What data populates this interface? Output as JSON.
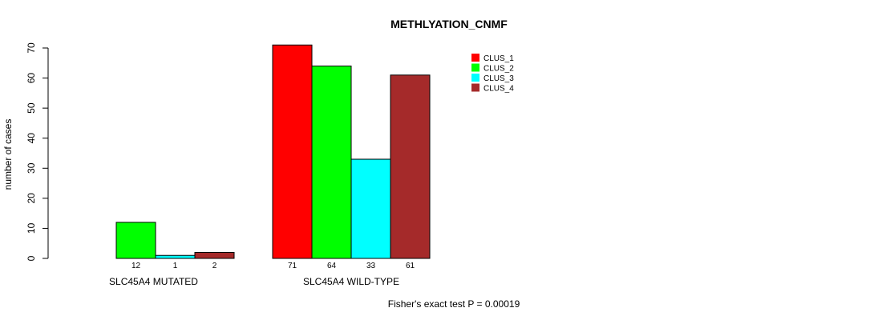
{
  "chart_data": {
    "type": "bar",
    "title": "METHLYATION_CNMF",
    "xlabel": "",
    "ylabel": "number of cases",
    "ylim": [
      0,
      70
    ],
    "yticks": [
      0,
      10,
      20,
      30,
      40,
      50,
      60,
      70
    ],
    "grid": false,
    "legend_position": "top-right",
    "categories": [
      "SLC45A4 MUTATED",
      "SLC45A4 WILD-TYPE"
    ],
    "series": [
      {
        "name": "CLUS_1",
        "color": "#ff0000",
        "values": [
          0,
          71
        ],
        "labels": [
          "",
          "71"
        ]
      },
      {
        "name": "CLUS_2",
        "color": "#00ff00",
        "values": [
          12,
          64
        ],
        "labels": [
          "12",
          "64"
        ]
      },
      {
        "name": "CLUS_3",
        "color": "#00ffff",
        "values": [
          1,
          33
        ],
        "labels": [
          "1",
          "33"
        ]
      },
      {
        "name": "CLUS_4",
        "color": "#a52a2a",
        "values": [
          2,
          61
        ],
        "labels": [
          "2",
          "61"
        ]
      }
    ],
    "footnote": "Fisher's exact test P = 0.00019"
  }
}
